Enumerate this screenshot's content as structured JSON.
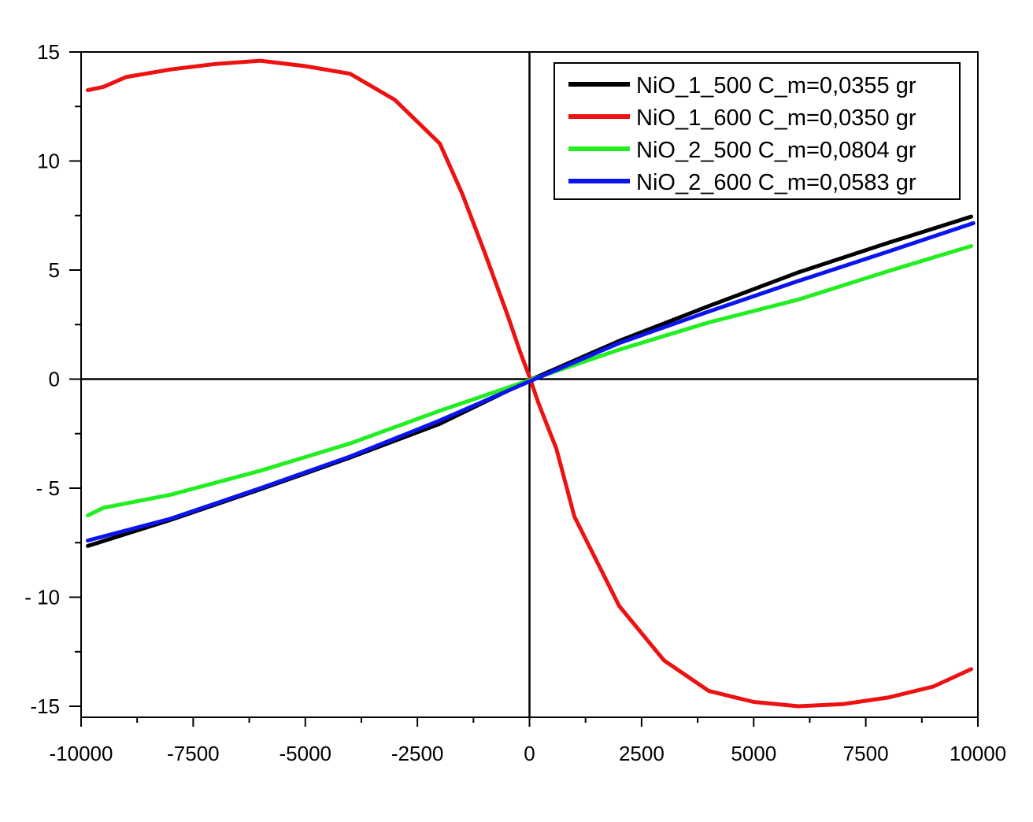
{
  "chart_data": {
    "type": "line",
    "title": "",
    "xlabel": "",
    "ylabel": "",
    "xlim": [
      -10000,
      10000
    ],
    "ylim": [
      -15.5,
      15
    ],
    "x_ticks": [
      -10000,
      -7500,
      -5000,
      -2500,
      0,
      2500,
      5000,
      7500,
      10000
    ],
    "x_tick_labels": [
      "-10000",
      "-7500",
      "-5000",
      "-2500",
      "0",
      "2500",
      "5000",
      "7500",
      "10000"
    ],
    "y_ticks": [
      15,
      10,
      5,
      0,
      -5,
      -10,
      -15
    ],
    "y_tick_labels": [
      "15",
      "10",
      "5",
      "0",
      "- 5",
      "- 10",
      "-15"
    ],
    "grid": false,
    "zero_lines": true,
    "legend_position": "top-right",
    "series": [
      {
        "name": "NiO_1_500 C_m=0,0355 gr",
        "color": "#000000",
        "points": [
          [
            -9850,
            -7.65
          ],
          [
            -8000,
            -6.45
          ],
          [
            -6000,
            -5.05
          ],
          [
            -4000,
            -3.6
          ],
          [
            -2000,
            -2.05
          ],
          [
            0,
            -0.05
          ],
          [
            2000,
            1.75
          ],
          [
            4000,
            3.35
          ],
          [
            6000,
            4.9
          ],
          [
            8000,
            6.25
          ],
          [
            9850,
            7.45
          ]
        ]
      },
      {
        "name": "NiO_1_600 C_m=0,0350 gr",
        "color": "#ee1111",
        "points": [
          [
            -9850,
            13.25
          ],
          [
            -9500,
            13.4
          ],
          [
            -9000,
            13.85
          ],
          [
            -8000,
            14.2
          ],
          [
            -7000,
            14.45
          ],
          [
            -6000,
            14.6
          ],
          [
            -5000,
            14.35
          ],
          [
            -4000,
            14.0
          ],
          [
            -3000,
            12.8
          ],
          [
            -2000,
            10.8
          ],
          [
            -1500,
            8.5
          ],
          [
            -1000,
            5.8
          ],
          [
            -500,
            3.0
          ],
          [
            -200,
            1.2
          ],
          [
            0,
            0.1
          ],
          [
            200,
            -1.1
          ],
          [
            600,
            -3.2
          ],
          [
            1000,
            -6.3
          ],
          [
            2000,
            -10.4
          ],
          [
            3000,
            -12.9
          ],
          [
            4000,
            -14.3
          ],
          [
            5000,
            -14.8
          ],
          [
            6000,
            -15.0
          ],
          [
            7000,
            -14.9
          ],
          [
            8000,
            -14.6
          ],
          [
            9000,
            -14.1
          ],
          [
            9850,
            -13.3
          ]
        ]
      },
      {
        "name": "NiO_2_500 C_m=0,0804 gr",
        "color": "#22ee22",
        "points": [
          [
            -9850,
            -6.25
          ],
          [
            -9500,
            -5.9
          ],
          [
            -8000,
            -5.3
          ],
          [
            -6000,
            -4.2
          ],
          [
            -4000,
            -2.95
          ],
          [
            -2000,
            -1.45
          ],
          [
            0,
            -0.05
          ],
          [
            2000,
            1.35
          ],
          [
            4000,
            2.6
          ],
          [
            6000,
            3.65
          ],
          [
            8000,
            4.95
          ],
          [
            9850,
            6.1
          ]
        ]
      },
      {
        "name": "NiO_2_600 C_m=0,0583 gr",
        "color": "#0a14ee",
        "points": [
          [
            -9850,
            -7.4
          ],
          [
            -8000,
            -6.4
          ],
          [
            -6000,
            -5.0
          ],
          [
            -4000,
            -3.55
          ],
          [
            -2000,
            -1.9
          ],
          [
            0,
            -0.1
          ],
          [
            2000,
            1.65
          ],
          [
            4000,
            3.1
          ],
          [
            6000,
            4.5
          ],
          [
            8000,
            5.85
          ],
          [
            9900,
            7.15
          ]
        ]
      }
    ]
  }
}
